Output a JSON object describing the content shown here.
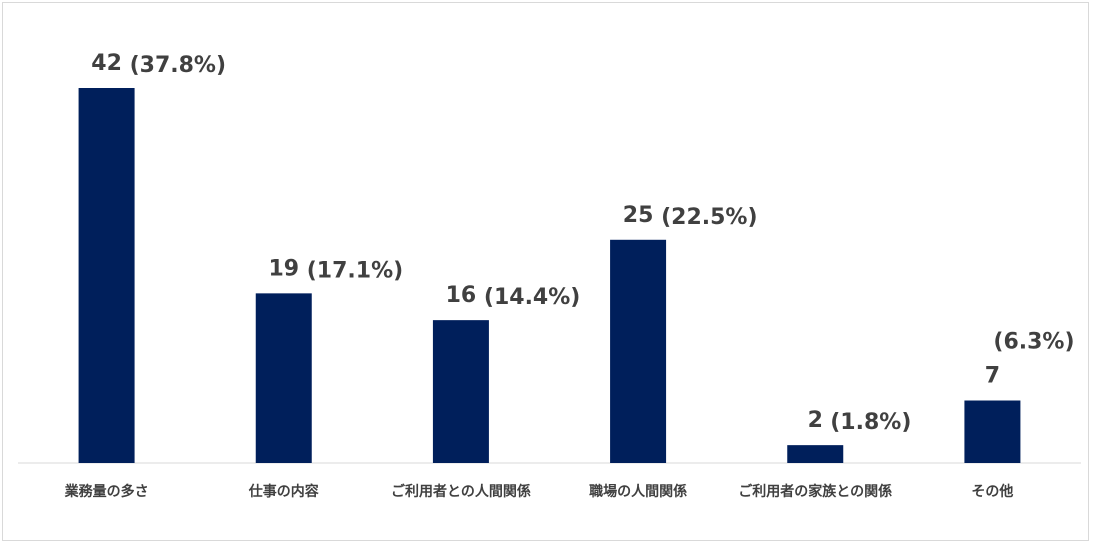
{
  "chart_data": {
    "type": "bar",
    "categories": [
      "業務量の多さ",
      "仕事の内容",
      "ご利用者との人間関係",
      "職場の人間関係",
      "ご利用者の家族との関係",
      "その他"
    ],
    "values": [
      42,
      19,
      16,
      25,
      2,
      7
    ],
    "percent_labels": [
      "(37.8%)",
      "(17.1%)",
      "(14.4%)",
      "(22.5%)",
      "(1.8%)",
      "(6.3%)"
    ],
    "title": "",
    "xlabel": "",
    "ylabel": "",
    "ylim": [
      0,
      42
    ],
    "grid": false,
    "legend": "none",
    "bar_color": "#001f5b",
    "axis_color": "#d9d9d9",
    "label_color": "#404040"
  }
}
